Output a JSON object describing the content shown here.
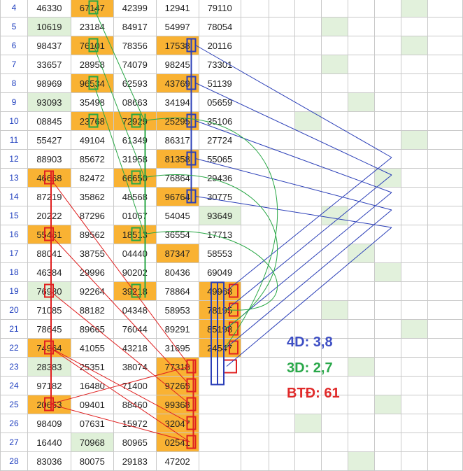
{
  "rows": [
    {
      "n": "4",
      "v": [
        "46330",
        "67147",
        "42399",
        "12941",
        "79110"
      ]
    },
    {
      "n": "5",
      "v": [
        "10619",
        "23184",
        "84917",
        "54997",
        "78054"
      ]
    },
    {
      "n": "6",
      "v": [
        "98437",
        "76101",
        "78356",
        "17538",
        "20116"
      ]
    },
    {
      "n": "7",
      "v": [
        "33657",
        "28958",
        "74079",
        "98245",
        "73301"
      ]
    },
    {
      "n": "8",
      "v": [
        "98969",
        "96534",
        "62593",
        "43769",
        "51139"
      ]
    },
    {
      "n": "9",
      "v": [
        "93093",
        "35498",
        "08663",
        "34194",
        "05659"
      ]
    },
    {
      "n": "10",
      "v": [
        "08845",
        "23768",
        "72929",
        "25295",
        "35106"
      ]
    },
    {
      "n": "11",
      "v": [
        "55427",
        "49104",
        "61349",
        "86317",
        "27724"
      ]
    },
    {
      "n": "12",
      "v": [
        "88903",
        "85672",
        "31958",
        "81358",
        "55065"
      ]
    },
    {
      "n": "13",
      "v": [
        "46668",
        "82472",
        "66650",
        "76864",
        "29436"
      ]
    },
    {
      "n": "14",
      "v": [
        "87219",
        "35862",
        "48568",
        "96764",
        "30775"
      ]
    },
    {
      "n": "15",
      "v": [
        "20222",
        "87296",
        "01067",
        "54045",
        "93649"
      ]
    },
    {
      "n": "16",
      "v": [
        "55461",
        "89562",
        "18513",
        "36554",
        "17713"
      ]
    },
    {
      "n": "17",
      "v": [
        "88041",
        "38755",
        "04440",
        "87347",
        "58553"
      ]
    },
    {
      "n": "18",
      "v": [
        "46384",
        "29996",
        "90202",
        "80436",
        "69049"
      ]
    },
    {
      "n": "19",
      "v": [
        "76980",
        "92264",
        "39218",
        "78864",
        "49968"
      ]
    },
    {
      "n": "20",
      "v": [
        "71085",
        "88182",
        "04348",
        "58953",
        "78195"
      ]
    },
    {
      "n": "21",
      "v": [
        "78645",
        "89665",
        "76044",
        "89291",
        "85198"
      ]
    },
    {
      "n": "22",
      "v": [
        "74964",
        "41055",
        "43218",
        "31695",
        "24547"
      ]
    },
    {
      "n": "23",
      "v": [
        "28383",
        "25351",
        "38074",
        "77318",
        ""
      ]
    },
    {
      "n": "24",
      "v": [
        "97182",
        "16480",
        "71400",
        "97265",
        ""
      ]
    },
    {
      "n": "25",
      "v": [
        "20653",
        "09401",
        "88460",
        "99368",
        ""
      ]
    },
    {
      "n": "26",
      "v": [
        "98409",
        "07631",
        "15972",
        "32047",
        ""
      ]
    },
    {
      "n": "27",
      "v": [
        "16440",
        "70968",
        "80965",
        "02541",
        ""
      ]
    },
    {
      "n": "28",
      "v": [
        "83036",
        "80075",
        "29183",
        "47202",
        ""
      ]
    }
  ],
  "highlights": [
    [
      0,
      1
    ],
    [
      1,
      0
    ],
    [
      2,
      1
    ],
    [
      2,
      3
    ],
    [
      4,
      1
    ],
    [
      4,
      3
    ],
    [
      5,
      0
    ],
    [
      6,
      1
    ],
    [
      6,
      2
    ],
    [
      6,
      3
    ],
    [
      8,
      3
    ],
    [
      9,
      0
    ],
    [
      9,
      2
    ],
    [
      10,
      3
    ],
    [
      11,
      4
    ],
    [
      12,
      0
    ],
    [
      12,
      2
    ],
    [
      13,
      3
    ],
    [
      15,
      0
    ],
    [
      15,
      2
    ],
    [
      15,
      4
    ],
    [
      16,
      4
    ],
    [
      17,
      4
    ],
    [
      18,
      0
    ],
    [
      18,
      4
    ],
    [
      19,
      0
    ],
    [
      19,
      3
    ],
    [
      20,
      3
    ],
    [
      21,
      0
    ],
    [
      21,
      3
    ],
    [
      22,
      3
    ],
    [
      23,
      1
    ],
    [
      23,
      3
    ]
  ],
  "highlight_kinds": [
    "o",
    "g",
    "o",
    "o",
    "o",
    "o",
    "g",
    "o",
    "o",
    "o",
    "o",
    "o",
    "o",
    "o",
    "g",
    "o",
    "o",
    "o",
    "g",
    "o",
    "o",
    "o",
    "o",
    "o",
    "o",
    "g",
    "o",
    "o",
    "o",
    "o",
    "o",
    "g",
    "o"
  ],
  "extra_green_cells": [
    [
      0,
      11
    ],
    [
      1,
      8
    ],
    [
      2,
      11
    ],
    [
      3,
      8
    ],
    [
      5,
      9
    ],
    [
      6,
      7
    ],
    [
      7,
      11
    ],
    [
      9,
      10
    ],
    [
      11,
      8
    ],
    [
      13,
      9
    ],
    [
      14,
      10
    ],
    [
      16,
      8
    ],
    [
      17,
      11
    ],
    [
      19,
      9
    ],
    [
      21,
      10
    ],
    [
      22,
      7
    ],
    [
      24,
      9
    ],
    [
      25,
      8
    ]
  ],
  "colors": {
    "orange": "#f9b233",
    "green": "#dff0d8",
    "box_red": "#e02020",
    "box_green": "#28a745",
    "box_blue": "#2b3fb8",
    "legend_blue": "#3e4fc4",
    "legend_green": "#2aa84a",
    "legend_red": "#e02a2a"
  },
  "legend": [
    {
      "label": "4D: 3,8",
      "color": "#3e4fc4"
    },
    {
      "label": "3D: 2,7",
      "color": "#2aa84a"
    },
    {
      "label": "BTĐ: 61",
      "color": "#e02a2a"
    }
  ]
}
